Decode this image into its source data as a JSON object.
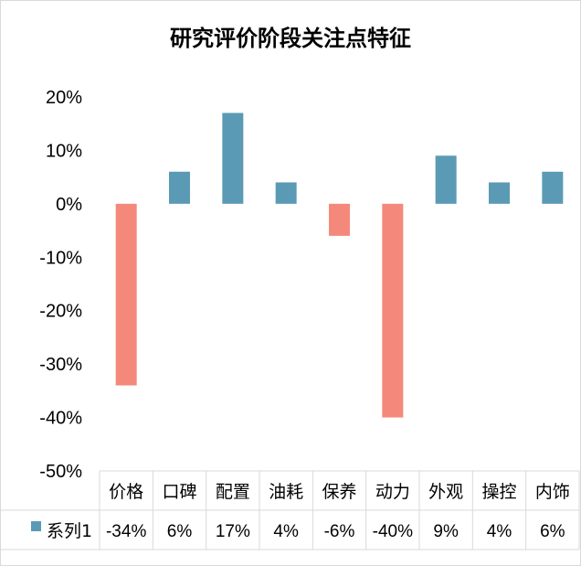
{
  "chart_data": {
    "type": "bar",
    "title": "研究评价阶段关注点特征",
    "categories": [
      "价格",
      "口碑",
      "配置",
      "油耗",
      "保养",
      "动力",
      "外观",
      "操控",
      "内饰"
    ],
    "series": [
      {
        "name": "系列1",
        "values": [
          -0.34,
          0.06,
          0.17,
          0.04,
          -0.06,
          -0.4,
          0.09,
          0.04,
          0.06
        ],
        "labels": [
          "-34%",
          "6%",
          "17%",
          "4%",
          "-6%",
          "-40%",
          "9%",
          "4%",
          "6%"
        ]
      }
    ],
    "ylim": [
      -0.5,
      0.2
    ],
    "yticks": [
      0.2,
      0.1,
      0,
      -0.1,
      -0.2,
      -0.3,
      -0.4,
      -0.5
    ],
    "ytick_labels": [
      "20%",
      "10%",
      "0%",
      "-10%",
      "-20%",
      "-30%",
      "-40%",
      "-50%"
    ],
    "data_table": true,
    "colors": {
      "positive": "#5b9ab5",
      "negative": "#f4897b",
      "grid": "#d9d9d9"
    }
  }
}
